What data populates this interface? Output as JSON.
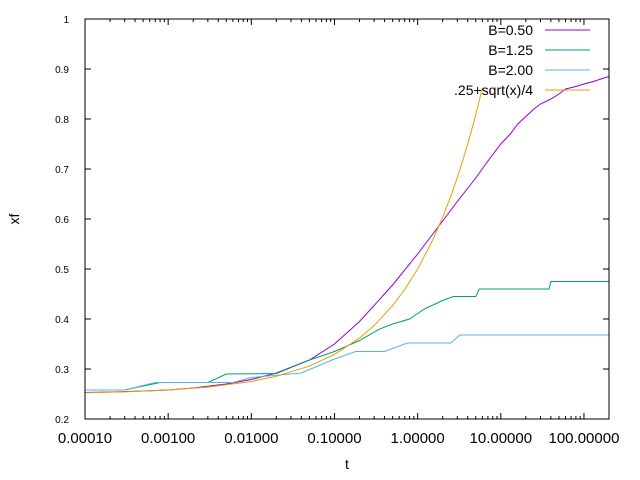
{
  "chart_data": {
    "type": "line",
    "xlabel": "t",
    "ylabel": "xf",
    "xscale": "log",
    "xlim": [
      0.0001,
      200
    ],
    "ylim": [
      0.2,
      1.0
    ],
    "xticks": [
      0.0001,
      0.001,
      0.01,
      0.1,
      1,
      10,
      100
    ],
    "xtick_labels": [
      "0.00010",
      "0.00100",
      "0.01000",
      "0.10000",
      "1.00000",
      "10.00000",
      "100.00000"
    ],
    "yticks": [
      0.2,
      0.3,
      0.4,
      0.5,
      0.6,
      0.7,
      0.8,
      0.9,
      1.0
    ],
    "ytick_labels": [
      "0.2",
      "0.3",
      "0.4",
      "0.5",
      "0.6",
      "0.7",
      "0.8",
      "0.9",
      "1"
    ],
    "grid": false,
    "legend_position": "top-right",
    "series": [
      {
        "name": "B=0.50",
        "color": "#9400d3",
        "x": [
          0.0001,
          0.0002,
          0.0005,
          0.001,
          0.002,
          0.005,
          0.01,
          0.02,
          0.05,
          0.1,
          0.2,
          0.5,
          1,
          2,
          3,
          5,
          7,
          10,
          13,
          16,
          20,
          25,
          30,
          40,
          50,
          60,
          80,
          100,
          130,
          160,
          200
        ],
        "y": [
          0.253,
          0.254,
          0.256,
          0.258,
          0.262,
          0.27,
          0.279,
          0.292,
          0.318,
          0.35,
          0.395,
          0.468,
          0.53,
          0.596,
          0.635,
          0.682,
          0.716,
          0.75,
          0.77,
          0.79,
          0.805,
          0.82,
          0.83,
          0.84,
          0.85,
          0.86,
          0.865,
          0.87,
          0.875,
          0.88,
          0.885
        ]
      },
      {
        "name": "B=1.25",
        "color": "#009e73",
        "x": [
          0.0001,
          0.0003,
          0.0008,
          0.003,
          0.005,
          0.02,
          0.05,
          0.1,
          0.2,
          0.35,
          0.5,
          0.8,
          1.2,
          2,
          2.7,
          5,
          5.5,
          38,
          40,
          200
        ],
        "y": [
          0.258,
          0.258,
          0.273,
          0.273,
          0.29,
          0.291,
          0.318,
          0.335,
          0.357,
          0.38,
          0.39,
          0.4,
          0.42,
          0.437,
          0.445,
          0.445,
          0.46,
          0.46,
          0.475,
          0.475
        ]
      },
      {
        "name": "B=2.00",
        "color": "#56b4e9",
        "x": [
          0.0001,
          0.0003,
          0.0007,
          0.006,
          0.01,
          0.04,
          0.1,
          0.18,
          0.4,
          0.75,
          2.5,
          3.2,
          200
        ],
        "y": [
          0.258,
          0.258,
          0.273,
          0.273,
          0.283,
          0.292,
          0.32,
          0.335,
          0.335,
          0.352,
          0.352,
          0.368,
          0.368
        ]
      },
      {
        "name": ".25+sqrt(x)/4",
        "color": "#e69f00",
        "x": [
          0.0001,
          0.0003,
          0.001,
          0.003,
          0.01,
          0.02,
          0.05,
          0.1,
          0.2,
          0.3,
          0.5,
          0.7,
          1,
          1.5,
          2,
          2.5,
          3,
          3.5,
          4,
          4.5,
          5,
          5.5,
          6.0
        ],
        "y": [
          0.2525,
          0.2543,
          0.2579,
          0.2637,
          0.275,
          0.2854,
          0.3059,
          0.3291,
          0.3618,
          0.3869,
          0.4268,
          0.4592,
          0.5,
          0.5562,
          0.6036,
          0.6453,
          0.683,
          0.7177,
          0.75,
          0.7803,
          0.809,
          0.8363,
          0.8624
        ]
      }
    ]
  }
}
